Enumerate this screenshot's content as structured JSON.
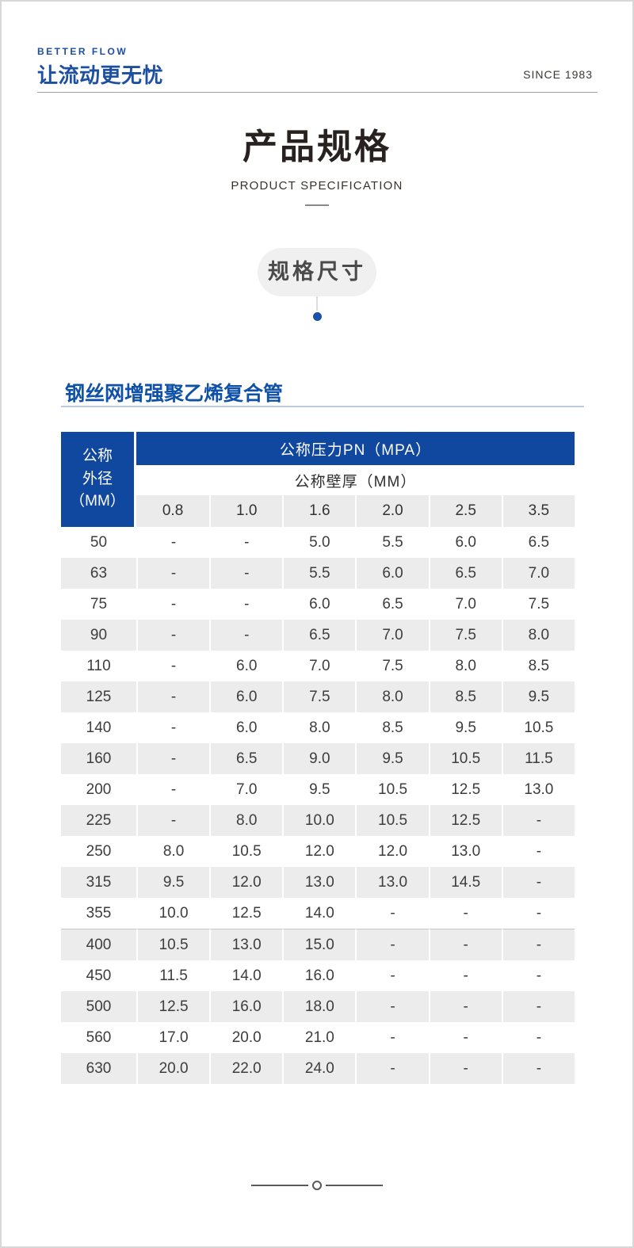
{
  "brand": {
    "tagline": "BETTER FLOW",
    "logo_text": "让流动更无忧",
    "since": "SINCE 1983"
  },
  "title_block": {
    "title": "产品规格",
    "subtitle": "PRODUCT SPECIFICATION"
  },
  "badge": {
    "label": "规格尺寸"
  },
  "section": {
    "heading": "钢丝网增强聚乙烯复合管"
  },
  "table": {
    "corner": {
      "line1": "公称",
      "line2": "外径",
      "line3": "（MM）"
    },
    "pressure_header": "公称压力PN（MPA）",
    "wall_header": "公称壁厚（MM）",
    "pressure_columns": [
      "0.8",
      "1.0",
      "1.6",
      "2.0",
      "2.5",
      "3.5"
    ],
    "rows": [
      {
        "od": "50",
        "values": [
          "-",
          "-",
          "5.0",
          "5.5",
          "6.0",
          "6.5"
        ]
      },
      {
        "od": "63",
        "values": [
          "-",
          "-",
          "5.5",
          "6.0",
          "6.5",
          "7.0"
        ]
      },
      {
        "od": "75",
        "values": [
          "-",
          "-",
          "6.0",
          "6.5",
          "7.0",
          "7.5"
        ]
      },
      {
        "od": "90",
        "values": [
          "-",
          "-",
          "6.5",
          "7.0",
          "7.5",
          "8.0"
        ]
      },
      {
        "od": "110",
        "values": [
          "-",
          "6.0",
          "7.0",
          "7.5",
          "8.0",
          "8.5"
        ]
      },
      {
        "od": "125",
        "values": [
          "-",
          "6.0",
          "7.5",
          "8.0",
          "8.5",
          "9.5"
        ]
      },
      {
        "od": "140",
        "values": [
          "-",
          "6.0",
          "8.0",
          "8.5",
          "9.5",
          "10.5"
        ]
      },
      {
        "od": "160",
        "values": [
          "-",
          "6.5",
          "9.0",
          "9.5",
          "10.5",
          "11.5"
        ]
      },
      {
        "od": "200",
        "values": [
          "-",
          "7.0",
          "9.5",
          "10.5",
          "12.5",
          "13.0"
        ]
      },
      {
        "od": "225",
        "values": [
          "-",
          "8.0",
          "10.0",
          "10.5",
          "12.5",
          "-"
        ]
      },
      {
        "od": "250",
        "values": [
          "8.0",
          "10.5",
          "12.0",
          "12.0",
          "13.0",
          "-"
        ]
      },
      {
        "od": "315",
        "values": [
          "9.5",
          "12.0",
          "13.0",
          "13.0",
          "14.5",
          "-"
        ]
      },
      {
        "od": "355",
        "values": [
          "10.0",
          "12.5",
          "14.0",
          "-",
          "-",
          "-"
        ]
      },
      {
        "od": "400",
        "values": [
          "10.5",
          "13.0",
          "15.0",
          "-",
          "-",
          "-"
        ],
        "divider": true
      },
      {
        "od": "450",
        "values": [
          "11.5",
          "14.0",
          "16.0",
          "-",
          "-",
          "-"
        ]
      },
      {
        "od": "500",
        "values": [
          "12.5",
          "16.0",
          "18.0",
          "-",
          "-",
          "-"
        ]
      },
      {
        "od": "560",
        "values": [
          "17.0",
          "20.0",
          "21.0",
          "-",
          "-",
          "-"
        ]
      },
      {
        "od": "630",
        "values": [
          "20.0",
          "22.0",
          "24.0",
          "-",
          "-",
          "-"
        ]
      }
    ]
  },
  "colors": {
    "brand_blue": "#1d4fa1",
    "table_header_blue": "#10479f",
    "row_alt_gray": "#ececec",
    "badge_gray": "#f0f0f0",
    "dot_blue": "#1a51a9"
  }
}
